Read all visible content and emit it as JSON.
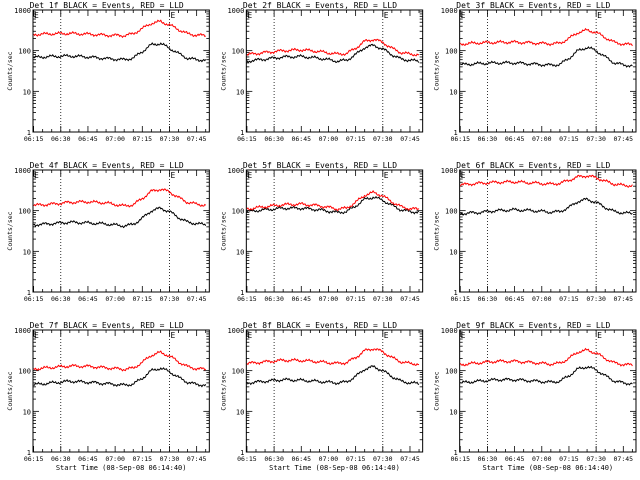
{
  "figure": {
    "units_y": "Counts/sec",
    "xlabel": "Start Time (08-Sep-08 06:14:40)",
    "x_tick_labels": [
      "06:15",
      "06:30",
      "06:45",
      "07:00",
      "07:15",
      "07:30",
      "07:45"
    ],
    "y_tick_labels": [
      "1",
      "10",
      "100",
      "1000"
    ],
    "colors": {
      "events": "#000000",
      "lld": "#ff0000"
    }
  },
  "chart_data": [
    {
      "type": "line",
      "title": "Det 1f BLACK = Events, RED = LLD",
      "xlabel": "",
      "ylabel": "Counts/sec",
      "yscale": "log",
      "ylim": [
        1,
        1000
      ],
      "xlim": [
        "06:14:40",
        "07:52"
      ],
      "markers": {
        "left": "E",
        "right": "E"
      },
      "vlines": [
        "06:30",
        "07:30"
      ],
      "x": [
        "06:15",
        "06:25",
        "06:35",
        "06:45",
        "06:55",
        "07:05",
        "07:10",
        "07:15",
        "07:20",
        "07:25",
        "07:30",
        "07:35",
        "07:40",
        "07:45",
        "07:50"
      ],
      "series": [
        {
          "name": "BLACK = Events",
          "values": [
            68,
            72,
            74,
            70,
            64,
            60,
            66,
            95,
            140,
            150,
            115,
            85,
            65,
            60,
            58
          ]
        },
        {
          "name": "RED = LLD",
          "values": [
            250,
            260,
            265,
            255,
            240,
            235,
            260,
            350,
            470,
            520,
            430,
            330,
            260,
            240,
            235
          ]
        }
      ]
    },
    {
      "type": "line",
      "title": "Det 2f BLACK = Events, RED = LLD",
      "xlabel": "",
      "ylabel": "Counts/sec",
      "yscale": "log",
      "ylim": [
        1,
        1000
      ],
      "xlim": [
        "06:14:40",
        "07:52"
      ],
      "markers": {
        "left": "E",
        "right": "E"
      },
      "vlines": [
        "06:30",
        "07:30"
      ],
      "x": [
        "06:15",
        "06:25",
        "06:35",
        "06:45",
        "06:55",
        "07:05",
        "07:10",
        "07:15",
        "07:20",
        "07:25",
        "07:30",
        "07:35",
        "07:40",
        "07:45",
        "07:50"
      ],
      "series": [
        {
          "name": "BLACK = Events",
          "values": [
            55,
            62,
            70,
            72,
            65,
            55,
            58,
            80,
            120,
            135,
            110,
            80,
            62,
            58,
            55
          ]
        },
        {
          "name": "RED = LLD",
          "values": [
            80,
            90,
            100,
            105,
            95,
            82,
            85,
            115,
            170,
            190,
            160,
            115,
            90,
            82,
            80
          ]
        }
      ]
    },
    {
      "type": "line",
      "title": "Det 3f BLACK = Events, RED = LLD",
      "xlabel": "",
      "ylabel": "Counts/sec",
      "yscale": "log",
      "ylim": [
        1,
        1000
      ],
      "xlim": [
        "06:14:40",
        "07:52"
      ],
      "markers": {
        "left": "E",
        "right": "E"
      },
      "vlines": [
        "06:30",
        "07:30"
      ],
      "x": [
        "06:15",
        "06:25",
        "06:35",
        "06:45",
        "06:55",
        "07:05",
        "07:10",
        "07:15",
        "07:20",
        "07:25",
        "07:30",
        "07:35",
        "07:40",
        "07:45",
        "07:50"
      ],
      "series": [
        {
          "name": "BLACK = Events",
          "values": [
            45,
            48,
            50,
            50,
            47,
            44,
            46,
            65,
            100,
            120,
            100,
            70,
            50,
            45,
            42
          ]
        },
        {
          "name": "RED = LLD",
          "values": [
            145,
            155,
            160,
            162,
            155,
            148,
            152,
            200,
            280,
            320,
            280,
            210,
            160,
            145,
            140
          ]
        }
      ]
    },
    {
      "type": "line",
      "title": "Det 4f BLACK = Events, RED = LLD",
      "xlabel": "",
      "ylabel": "Counts/sec",
      "yscale": "log",
      "ylim": [
        1,
        1000
      ],
      "xlim": [
        "06:14:40",
        "07:52"
      ],
      "markers": {
        "left": "E",
        "right": "E"
      },
      "vlines": [
        "06:30",
        "07:30"
      ],
      "x": [
        "06:15",
        "06:25",
        "06:35",
        "06:45",
        "06:55",
        "07:05",
        "07:10",
        "07:15",
        "07:20",
        "07:25",
        "07:30",
        "07:35",
        "07:40",
        "07:45",
        "07:50"
      ],
      "series": [
        {
          "name": "BLACK = Events",
          "values": [
            45,
            48,
            52,
            50,
            47,
            42,
            46,
            65,
            100,
            115,
            95,
            68,
            52,
            48,
            45
          ]
        },
        {
          "name": "RED = LLD",
          "values": [
            135,
            145,
            160,
            165,
            155,
            130,
            140,
            200,
            300,
            340,
            290,
            210,
            160,
            145,
            135
          ]
        }
      ]
    },
    {
      "type": "line",
      "title": "Det 5f BLACK = Events, RED = LLD",
      "xlabel": "",
      "ylabel": "Counts/sec",
      "yscale": "log",
      "ylim": [
        1,
        1000
      ],
      "xlim": [
        "06:14:40",
        "07:52"
      ],
      "markers": {
        "left": "E",
        "right": "E"
      },
      "vlines": [
        "06:30",
        "07:30"
      ],
      "x": [
        "06:15",
        "06:25",
        "06:35",
        "06:45",
        "06:55",
        "07:05",
        "07:10",
        "07:15",
        "07:20",
        "07:25",
        "07:30",
        "07:35",
        "07:40",
        "07:45",
        "07:50"
      ],
      "series": [
        {
          "name": "BLACK = Events",
          "values": [
            95,
            105,
            115,
            115,
            105,
            90,
            95,
            130,
            190,
            215,
            180,
            135,
            105,
            95,
            92
          ]
        },
        {
          "name": "RED = LLD",
          "values": [
            110,
            125,
            140,
            145,
            132,
            110,
            115,
            160,
            240,
            280,
            230,
            165,
            125,
            112,
            108
          ]
        }
      ]
    },
    {
      "type": "line",
      "title": "Det 6f BLACK = Events, RED = LLD",
      "xlabel": "",
      "ylabel": "Counts/sec",
      "yscale": "log",
      "ylim": [
        1,
        1000
      ],
      "xlim": [
        "06:14:40",
        "07:52"
      ],
      "markers": {
        "left": "E",
        "right": "E"
      },
      "vlines": [
        "06:30",
        "07:30"
      ],
      "x": [
        "06:15",
        "06:25",
        "06:35",
        "06:45",
        "06:55",
        "07:05",
        "07:10",
        "07:15",
        "07:20",
        "07:25",
        "07:30",
        "07:35",
        "07:40",
        "07:45",
        "07:50"
      ],
      "series": [
        {
          "name": "BLACK = Events",
          "values": [
            85,
            90,
            100,
            105,
            100,
            92,
            95,
            120,
            170,
            190,
            160,
            120,
            95,
            88,
            85
          ]
        },
        {
          "name": "RED = LLD",
          "values": [
            430,
            470,
            500,
            510,
            480,
            450,
            470,
            560,
            680,
            720,
            650,
            530,
            450,
            420,
            410
          ]
        }
      ]
    },
    {
      "type": "line",
      "title": "Det 7f BLACK = Events, RED = LLD",
      "xlabel": "Start Time (08-Sep-08 06:14:40)",
      "ylabel": "Counts/sec",
      "yscale": "log",
      "ylim": [
        1,
        1000
      ],
      "xlim": [
        "06:14:40",
        "07:52"
      ],
      "markers": {
        "left": "E",
        "right": "E"
      },
      "vlines": [
        "06:30",
        "07:30"
      ],
      "x": [
        "06:15",
        "06:25",
        "06:35",
        "06:45",
        "06:55",
        "07:05",
        "07:10",
        "07:15",
        "07:20",
        "07:25",
        "07:30",
        "07:35",
        "07:40",
        "07:45",
        "07:50"
      ],
      "series": [
        {
          "name": "BLACK = Events",
          "values": [
            45,
            50,
            55,
            52,
            48,
            44,
            47,
            65,
            100,
            115,
            95,
            68,
            52,
            46,
            44
          ]
        },
        {
          "name": "RED = LLD",
          "values": [
            110,
            120,
            130,
            128,
            118,
            108,
            115,
            160,
            240,
            280,
            230,
            165,
            125,
            112,
            108
          ]
        }
      ]
    },
    {
      "type": "line",
      "title": "Det 8f BLACK = Events, RED = LLD",
      "xlabel": "Start Time (08-Sep-08 06:14:40)",
      "ylabel": "Counts/sec",
      "yscale": "log",
      "ylim": [
        1,
        1000
      ],
      "xlim": [
        "06:14:40",
        "07:52"
      ],
      "markers": {
        "left": "E",
        "right": "E"
      },
      "vlines": [
        "06:30",
        "07:30"
      ],
      "x": [
        "06:15",
        "06:25",
        "06:35",
        "06:45",
        "06:55",
        "07:05",
        "07:10",
        "07:15",
        "07:20",
        "07:25",
        "07:30",
        "07:35",
        "07:40",
        "07:45",
        "07:50"
      ],
      "series": [
        {
          "name": "BLACK = Events",
          "values": [
            50,
            55,
            60,
            58,
            54,
            50,
            53,
            72,
            110,
            125,
            100,
            72,
            55,
            50,
            48
          ]
        },
        {
          "name": "RED = LLD",
          "values": [
            150,
            165,
            180,
            178,
            165,
            150,
            158,
            210,
            310,
            350,
            290,
            210,
            165,
            150,
            145
          ]
        }
      ]
    },
    {
      "type": "line",
      "title": "Det 9f BLACK = Events, RED = LLD",
      "xlabel": "Start Time (08-Sep-08 06:14:40)",
      "ylabel": "Counts/sec",
      "yscale": "log",
      "ylim": [
        1,
        1000
      ],
      "xlim": [
        "06:14:40",
        "07:52"
      ],
      "markers": {
        "left": "E",
        "right": "E"
      },
      "vlines": [
        "06:30",
        "07:30"
      ],
      "x": [
        "06:15",
        "06:25",
        "06:35",
        "06:45",
        "06:55",
        "07:05",
        "07:10",
        "07:15",
        "07:20",
        "07:25",
        "07:30",
        "07:35",
        "07:40",
        "07:45",
        "07:50"
      ],
      "series": [
        {
          "name": "BLACK = Events",
          "values": [
            50,
            55,
            60,
            60,
            56,
            52,
            55,
            75,
            110,
            125,
            105,
            75,
            56,
            50,
            48
          ]
        },
        {
          "name": "RED = LLD",
          "values": [
            140,
            155,
            170,
            170,
            158,
            145,
            152,
            200,
            290,
            320,
            270,
            200,
            155,
            142,
            138
          ]
        }
      ]
    }
  ]
}
